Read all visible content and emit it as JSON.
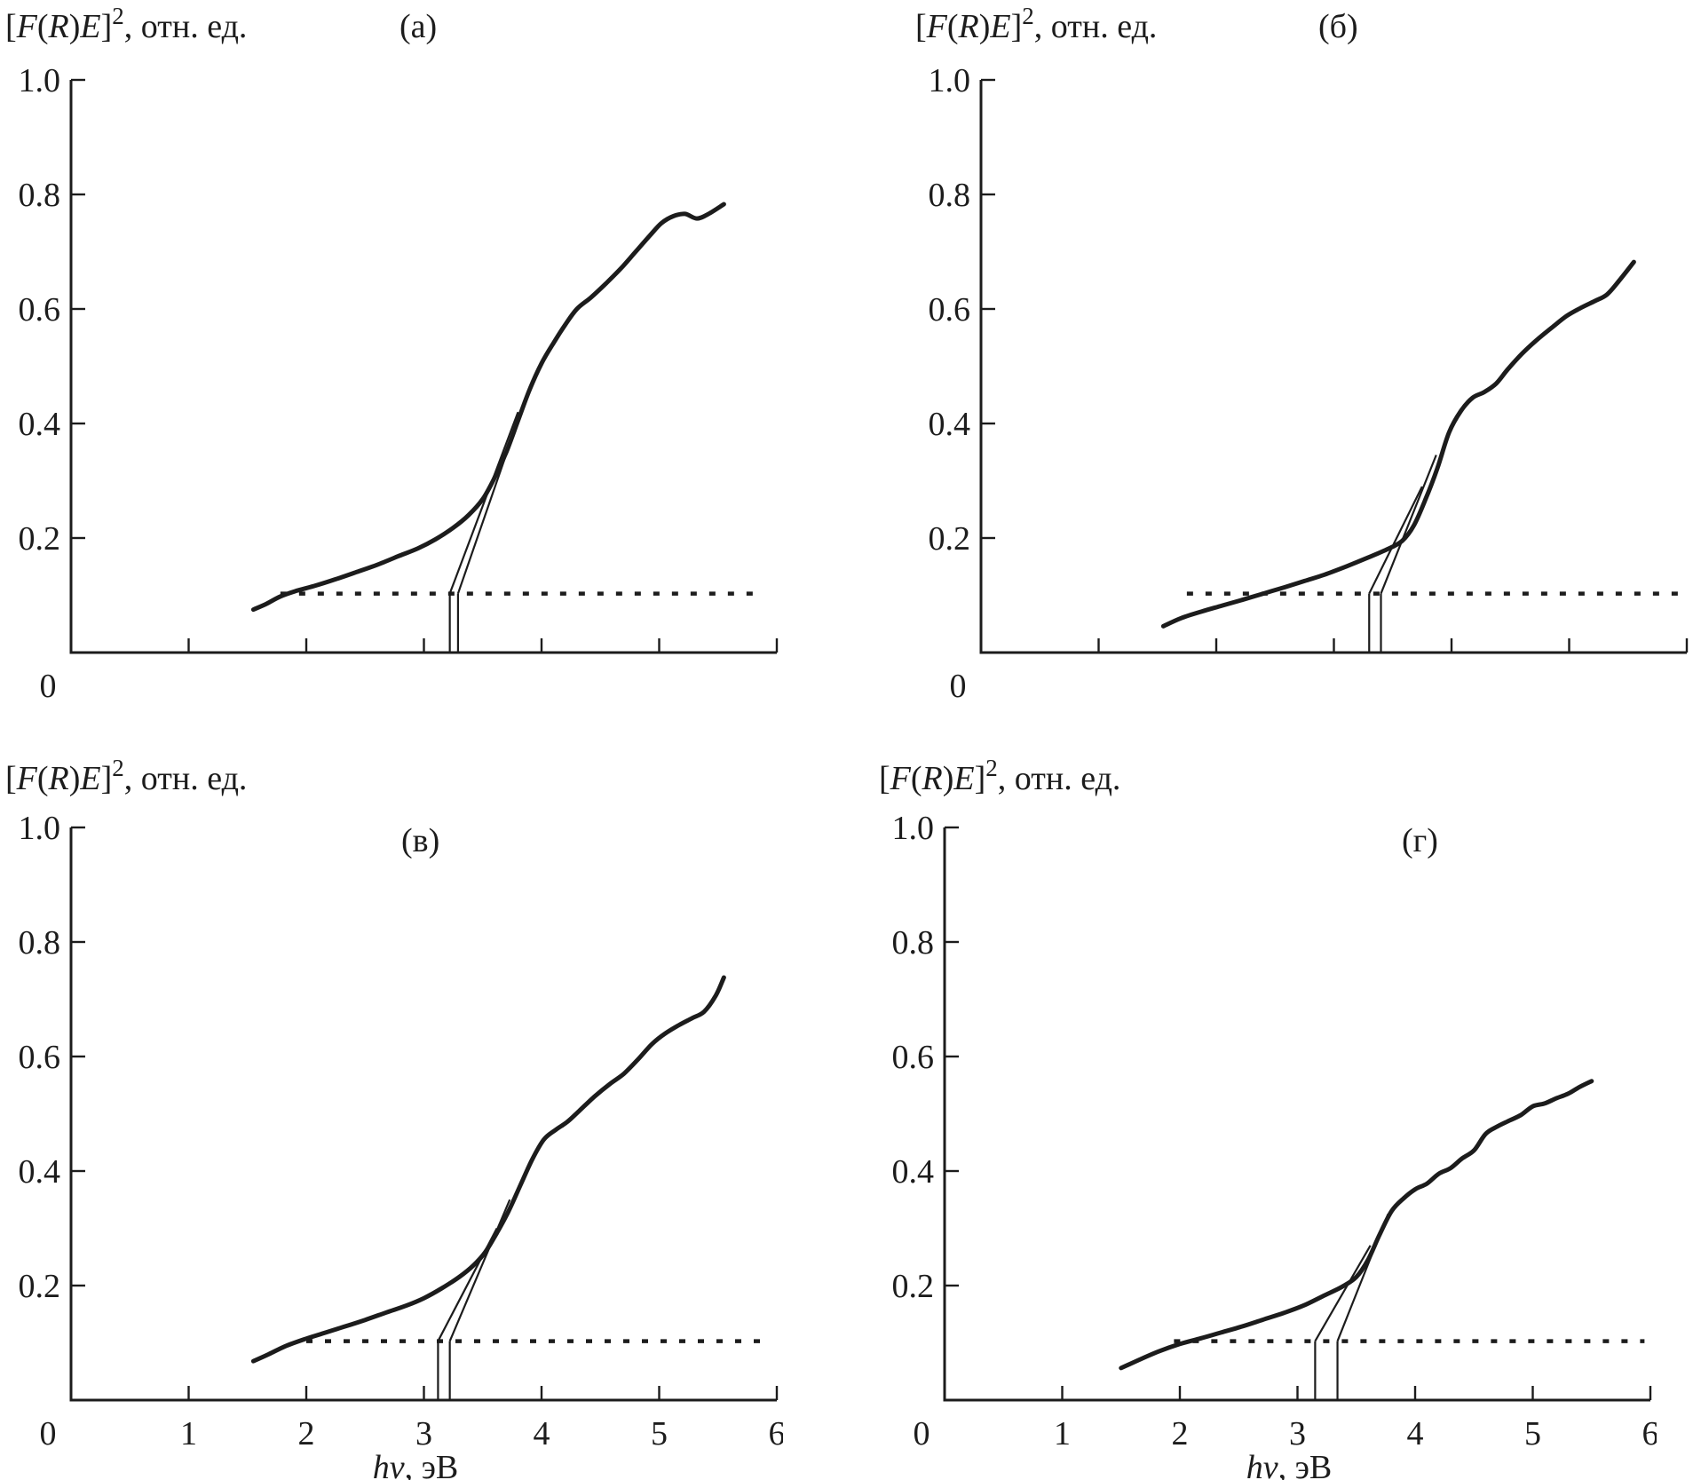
{
  "figure": {
    "background": "#ffffff",
    "ink": "#1c1c1c",
    "origin_label": "0",
    "description": "Four Tauc plots [F(R)E]^2 vs photon energy with band-gap tangent constructions"
  },
  "labels": {
    "y_axis_rich": [
      {
        "t": "[",
        "i": false
      },
      {
        "t": "F",
        "i": true
      },
      {
        "t": "(",
        "i": false
      },
      {
        "t": "R",
        "i": true
      },
      {
        "t": ")",
        "i": false
      },
      {
        "t": "E",
        "i": true
      },
      {
        "t": "]",
        "i": false
      },
      {
        "t": "2",
        "sup": true
      },
      {
        "t": ", отн. ед.",
        "i": false
      }
    ],
    "x_axis_rich": [
      {
        "t": "h",
        "i": true
      },
      {
        "t": "ν",
        "i": true
      },
      {
        "t": ", эВ",
        "i": false
      }
    ],
    "y_ticks": [
      {
        "label": "1.0",
        "value": 1.0
      },
      {
        "label": "0.8",
        "value": 0.8
      },
      {
        "label": "0.6",
        "value": 0.6
      },
      {
        "label": "0.4",
        "value": 0.4
      },
      {
        "label": "0.2",
        "value": 0.2
      }
    ],
    "x_ticks": [
      {
        "label": "1",
        "value": 1
      },
      {
        "label": "2",
        "value": 2
      },
      {
        "label": "3",
        "value": 3
      },
      {
        "label": "4",
        "value": 4
      },
      {
        "label": "5",
        "value": 5
      },
      {
        "label": "6",
        "value": 6
      }
    ]
  },
  "chart_data": [
    {
      "type": "line",
      "panel_letter": "(а)",
      "row": "top",
      "letter_x": 450,
      "xlim": [
        0,
        6
      ],
      "ylim": [
        0,
        1
      ],
      "grid": false,
      "x_tick_labels_shown": false,
      "xlabel_shown": false,
      "baseline": {
        "y": 0.103,
        "x_from": 1.78,
        "x_to": 5.9
      },
      "band_gap_lines": [
        3.22,
        3.29
      ],
      "tangent_lines": [
        [
          3.22,
          0.103,
          3.8,
          0.42
        ],
        [
          3.29,
          0.103,
          3.9,
          0.465
        ]
      ],
      "curve": [
        [
          1.55,
          0.075
        ],
        [
          1.66,
          0.085
        ],
        [
          1.78,
          0.098
        ],
        [
          1.92,
          0.108
        ],
        [
          2.08,
          0.117
        ],
        [
          2.25,
          0.128
        ],
        [
          2.42,
          0.14
        ],
        [
          2.6,
          0.153
        ],
        [
          2.78,
          0.168
        ],
        [
          2.95,
          0.182
        ],
        [
          3.1,
          0.198
        ],
        [
          3.25,
          0.218
        ],
        [
          3.38,
          0.24
        ],
        [
          3.5,
          0.268
        ],
        [
          3.6,
          0.305
        ],
        [
          3.7,
          0.35
        ],
        [
          3.8,
          0.405
        ],
        [
          3.9,
          0.46
        ],
        [
          4.0,
          0.505
        ],
        [
          4.1,
          0.54
        ],
        [
          4.2,
          0.572
        ],
        [
          4.3,
          0.6
        ],
        [
          4.42,
          0.62
        ],
        [
          4.55,
          0.645
        ],
        [
          4.68,
          0.672
        ],
        [
          4.8,
          0.7
        ],
        [
          4.92,
          0.728
        ],
        [
          5.02,
          0.75
        ],
        [
          5.12,
          0.762
        ],
        [
          5.22,
          0.766
        ],
        [
          5.32,
          0.758
        ],
        [
          5.42,
          0.766
        ],
        [
          5.55,
          0.783
        ]
      ]
    },
    {
      "type": "line",
      "panel_letter": "(б)",
      "row": "top",
      "letter_x": 460,
      "xlim": [
        0,
        6
      ],
      "ylim": [
        0,
        1
      ],
      "grid": false,
      "x_tick_labels_shown": false,
      "xlabel_shown": false,
      "baseline": {
        "y": 0.103,
        "x_from": 1.75,
        "x_to": 5.95
      },
      "band_gap_lines": [
        3.3,
        3.4
      ],
      "tangent_lines": [
        [
          3.3,
          0.103,
          3.75,
          0.29
        ],
        [
          3.4,
          0.103,
          3.87,
          0.345
        ]
      ],
      "curve": [
        [
          1.55,
          0.046
        ],
        [
          1.7,
          0.06
        ],
        [
          1.88,
          0.072
        ],
        [
          2.05,
          0.082
        ],
        [
          2.22,
          0.092
        ],
        [
          2.4,
          0.103
        ],
        [
          2.58,
          0.114
        ],
        [
          2.75,
          0.125
        ],
        [
          2.92,
          0.136
        ],
        [
          3.1,
          0.15
        ],
        [
          3.28,
          0.165
        ],
        [
          3.45,
          0.18
        ],
        [
          3.58,
          0.195
        ],
        [
          3.68,
          0.222
        ],
        [
          3.78,
          0.268
        ],
        [
          3.88,
          0.322
        ],
        [
          3.98,
          0.385
        ],
        [
          4.08,
          0.422
        ],
        [
          4.18,
          0.445
        ],
        [
          4.28,
          0.455
        ],
        [
          4.38,
          0.47
        ],
        [
          4.48,
          0.495
        ],
        [
          4.6,
          0.522
        ],
        [
          4.72,
          0.545
        ],
        [
          4.85,
          0.567
        ],
        [
          4.98,
          0.588
        ],
        [
          5.1,
          0.602
        ],
        [
          5.22,
          0.614
        ],
        [
          5.32,
          0.625
        ],
        [
          5.42,
          0.648
        ],
        [
          5.55,
          0.682
        ]
      ]
    },
    {
      "type": "line",
      "panel_letter": "(в)",
      "row": "bottom",
      "letter_x": 452,
      "xlim": [
        0,
        6
      ],
      "ylim": [
        0,
        1
      ],
      "grid": false,
      "x_tick_labels_shown": true,
      "xlabel_shown": true,
      "baseline": {
        "y": 0.103,
        "x_from": 2.0,
        "x_to": 5.9
      },
      "band_gap_lines": [
        3.12,
        3.22
      ],
      "tangent_lines": [
        [
          3.12,
          0.103,
          3.62,
          0.3
        ],
        [
          3.22,
          0.103,
          3.73,
          0.35
        ]
      ],
      "curve": [
        [
          1.55,
          0.068
        ],
        [
          1.68,
          0.08
        ],
        [
          1.82,
          0.094
        ],
        [
          1.98,
          0.106
        ],
        [
          2.15,
          0.117
        ],
        [
          2.32,
          0.128
        ],
        [
          2.5,
          0.14
        ],
        [
          2.68,
          0.153
        ],
        [
          2.85,
          0.165
        ],
        [
          3.0,
          0.178
        ],
        [
          3.15,
          0.195
        ],
        [
          3.3,
          0.215
        ],
        [
          3.42,
          0.235
        ],
        [
          3.52,
          0.258
        ],
        [
          3.62,
          0.292
        ],
        [
          3.72,
          0.33
        ],
        [
          3.82,
          0.375
        ],
        [
          3.92,
          0.42
        ],
        [
          4.02,
          0.455
        ],
        [
          4.12,
          0.472
        ],
        [
          4.22,
          0.486
        ],
        [
          4.32,
          0.505
        ],
        [
          4.45,
          0.53
        ],
        [
          4.58,
          0.552
        ],
        [
          4.7,
          0.57
        ],
        [
          4.82,
          0.595
        ],
        [
          4.94,
          0.622
        ],
        [
          5.05,
          0.64
        ],
        [
          5.17,
          0.655
        ],
        [
          5.28,
          0.667
        ],
        [
          5.38,
          0.678
        ],
        [
          5.48,
          0.706
        ],
        [
          5.55,
          0.738
        ]
      ]
    },
    {
      "type": "line",
      "panel_letter": "(г)",
      "row": "bottom",
      "letter_x": 595,
      "xlim": [
        0,
        6
      ],
      "ylim": [
        0,
        1
      ],
      "grid": false,
      "x_tick_labels_shown": true,
      "xlabel_shown": true,
      "baseline": {
        "y": 0.103,
        "x_from": 1.95,
        "x_to": 5.95
      },
      "band_gap_lines": [
        3.15,
        3.34
      ],
      "tangent_lines": [
        [
          3.15,
          0.103,
          3.62,
          0.27
        ],
        [
          3.34,
          0.103,
          3.77,
          0.325
        ]
      ],
      "curve": [
        [
          1.5,
          0.056
        ],
        [
          1.65,
          0.07
        ],
        [
          1.82,
          0.085
        ],
        [
          2.0,
          0.098
        ],
        [
          2.18,
          0.108
        ],
        [
          2.35,
          0.118
        ],
        [
          2.52,
          0.128
        ],
        [
          2.7,
          0.14
        ],
        [
          2.88,
          0.152
        ],
        [
          3.05,
          0.165
        ],
        [
          3.22,
          0.182
        ],
        [
          3.38,
          0.198
        ],
        [
          3.5,
          0.215
        ],
        [
          3.6,
          0.245
        ],
        [
          3.7,
          0.29
        ],
        [
          3.8,
          0.33
        ],
        [
          3.9,
          0.352
        ],
        [
          4.0,
          0.368
        ],
        [
          4.1,
          0.378
        ],
        [
          4.2,
          0.395
        ],
        [
          4.3,
          0.405
        ],
        [
          4.4,
          0.422
        ],
        [
          4.5,
          0.436
        ],
        [
          4.6,
          0.465
        ],
        [
          4.7,
          0.478
        ],
        [
          4.8,
          0.488
        ],
        [
          4.9,
          0.498
        ],
        [
          5.0,
          0.513
        ],
        [
          5.1,
          0.518
        ],
        [
          5.2,
          0.527
        ],
        [
          5.3,
          0.535
        ],
        [
          5.4,
          0.547
        ],
        [
          5.5,
          0.557
        ]
      ]
    }
  ]
}
